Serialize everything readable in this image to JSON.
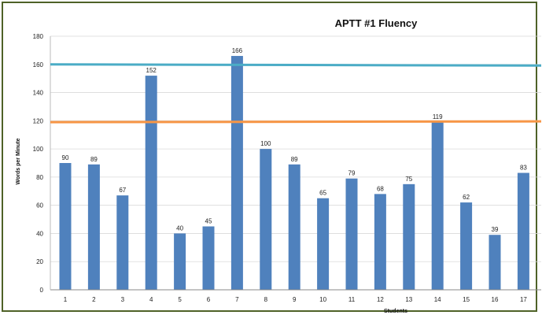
{
  "chart_data": {
    "type": "bar",
    "title": "APTT #1 Fluency",
    "xlabel": "Students",
    "ylabel": "Words per Minute",
    "categories": [
      "1",
      "2",
      "3",
      "4",
      "5",
      "6",
      "7",
      "8",
      "9",
      "10",
      "11",
      "12",
      "13",
      "14",
      "15",
      "16",
      "17"
    ],
    "values": [
      90,
      89,
      67,
      152,
      40,
      45,
      166,
      100,
      89,
      65,
      79,
      68,
      75,
      119,
      62,
      39,
      83
    ],
    "ylim": [
      0,
      180
    ],
    "yticks": [
      0,
      20,
      40,
      60,
      80,
      100,
      120,
      140,
      160,
      180
    ],
    "reference_lines": [
      {
        "value": 160,
        "color": "#4bacc6"
      },
      {
        "value": 119,
        "color": "#f79646"
      }
    ],
    "bar_color": "#4f81bd",
    "grid": true,
    "legend": "none"
  }
}
